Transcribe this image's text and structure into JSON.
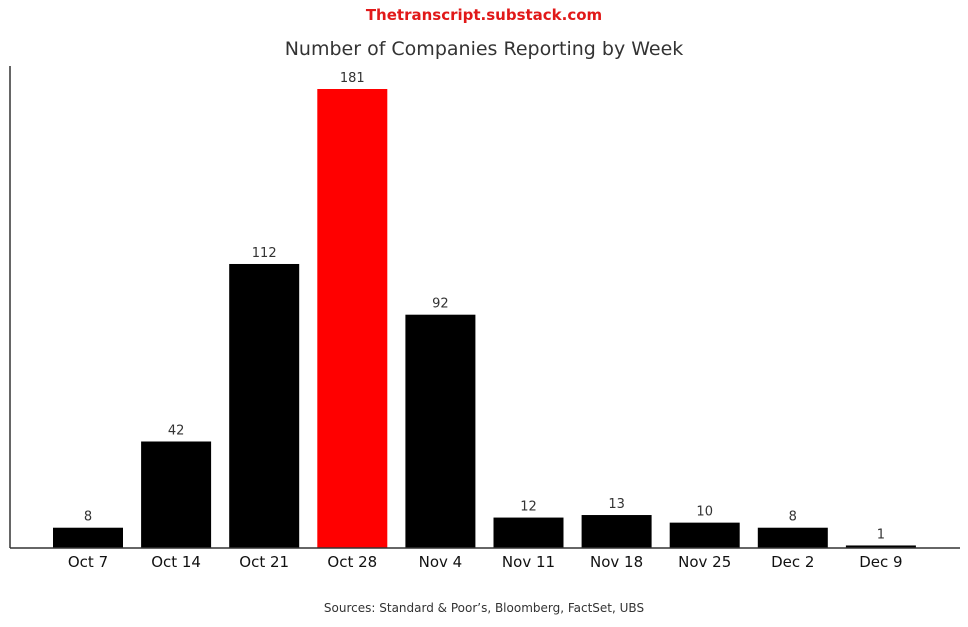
{
  "header": {
    "watermark": "Thetranscript.substack.com"
  },
  "footer": {
    "source": "Sources: Standard & Poor’s, Bloomberg, FactSet, UBS"
  },
  "chart_data": {
    "type": "bar",
    "title": "Number of Companies Reporting by Week",
    "categories": [
      "Oct 7",
      "Oct 14",
      "Oct 21",
      "Oct 28",
      "Nov 4",
      "Nov 11",
      "Nov 18",
      "Nov 25",
      "Dec 2",
      "Dec 9"
    ],
    "values": [
      8,
      42,
      112,
      181,
      92,
      12,
      13,
      10,
      8,
      1
    ],
    "highlight_index": 3,
    "colors": {
      "default": "#000000",
      "highlight": "#ff0000"
    },
    "xlabel": "",
    "ylabel": "",
    "ylim": [
      0,
      181
    ],
    "grid": false,
    "show_data_labels": true
  }
}
